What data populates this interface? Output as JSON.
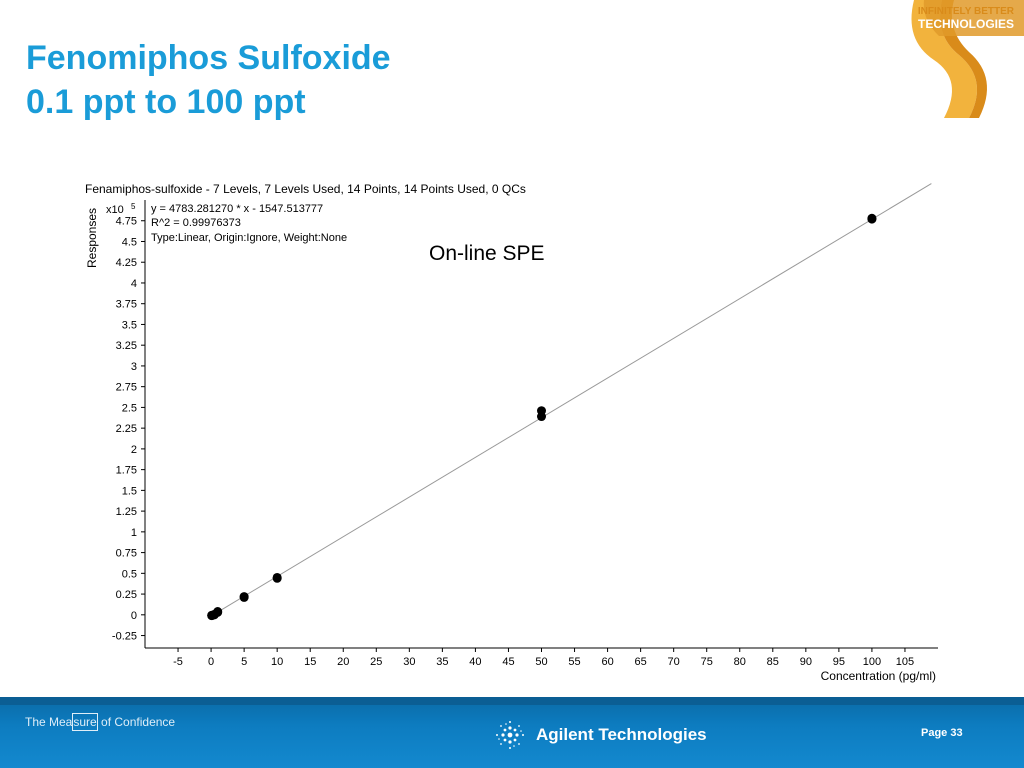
{
  "slide": {
    "title_line1": "Fenomiphos Sulfoxide",
    "title_line2": "0.1 ppt to 100 ppt",
    "logo_line1": "INFINITELY BETTER",
    "logo_line2": "TECHNOLOGIES",
    "annotation": "On-line SPE"
  },
  "footer": {
    "tagline_pre": "The Mea",
    "tagline_box": "sure",
    "tagline_post": " of Confidence",
    "brand": "Agilent Technologies",
    "page": "Page 33"
  },
  "colors": {
    "title": "#1a9cd8",
    "footer": "#0d7cc0",
    "accent": "#d98b1a"
  },
  "chart_data": {
    "type": "scatter",
    "title": "Fenamiphos-sulfoxide - 7 Levels, 7 Levels Used, 14 Points, 14 Points Used, 0 QCs",
    "equation": "y = 4783.281270 * x  - 1547.513777",
    "r2": "R^2 = 0.99976373",
    "fit_info": "Type:Linear, Origin:Ignore, Weight:None",
    "ylabel": "Responses",
    "y_multiplier": "x10",
    "y_multiplier_exp": "5",
    "xlabel": "Concentration (pg/ml)",
    "xlim": [
      -10,
      110
    ],
    "ylim": [
      -0.4,
      5.0
    ],
    "x_ticks": [
      -5,
      0,
      5,
      10,
      15,
      20,
      25,
      30,
      35,
      40,
      45,
      50,
      55,
      60,
      65,
      70,
      75,
      80,
      85,
      90,
      95,
      100,
      105
    ],
    "y_ticks": [
      -0.25,
      0,
      0.25,
      0.5,
      0.75,
      1,
      1.25,
      1.5,
      1.75,
      2,
      2.25,
      2.5,
      2.75,
      3,
      3.25,
      3.5,
      3.75,
      4,
      4.25,
      4.5,
      4.75
    ],
    "fit_line": {
      "slope": 4783.28127,
      "intercept": -1547.513777
    },
    "points": [
      {
        "x": 0.1,
        "y": -0.01
      },
      {
        "x": 0.1,
        "y": -0.005
      },
      {
        "x": 0.5,
        "y": 0.0
      },
      {
        "x": 0.5,
        "y": 0.005
      },
      {
        "x": 1,
        "y": 0.03
      },
      {
        "x": 1,
        "y": 0.04
      },
      {
        "x": 5,
        "y": 0.22
      },
      {
        "x": 5,
        "y": 0.21
      },
      {
        "x": 10,
        "y": 0.44
      },
      {
        "x": 10,
        "y": 0.45
      },
      {
        "x": 50,
        "y": 2.39
      },
      {
        "x": 50,
        "y": 2.46
      },
      {
        "x": 100,
        "y": 4.77
      },
      {
        "x": 100,
        "y": 4.78
      }
    ]
  }
}
